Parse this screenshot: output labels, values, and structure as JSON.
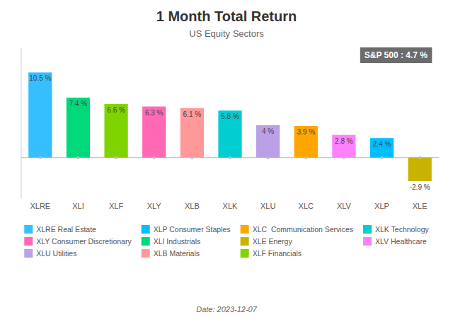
{
  "chart_data": {
    "type": "bar",
    "title": "1 Month Total Return",
    "subtitle": "US Equity Sectors",
    "annotations": [
      "S&P 500 : 4.7 %",
      "Date: 2023-12-07"
    ],
    "categories": [
      "XLRE",
      "XLI",
      "XLF",
      "XLY",
      "XLB",
      "XLK",
      "XLU",
      "XLC",
      "XLV",
      "XLP",
      "XLE"
    ],
    "values": [
      10.5,
      7.4,
      6.6,
      6.3,
      6.1,
      5.8,
      4.0,
      3.9,
      2.8,
      2.4,
      -2.9
    ],
    "value_labels": [
      "10.5 %",
      "7.4 %",
      "6.6 %",
      "6.3 %",
      "6.1 %",
      "5.8 %",
      "4 %",
      "3.9 %",
      "2.8 %",
      "2.4 %",
      "-2.9 %"
    ],
    "colors": [
      "#36BFFF",
      "#00D97A",
      "#7FD400",
      "#FF69B4",
      "#FF9999",
      "#00CED1",
      "#BBA0E8",
      "#FFA500",
      "#FF80FF",
      "#00BFFF",
      "#C8B400"
    ],
    "data_labels": true,
    "ylim": [
      -5,
      13.5
    ],
    "tick_labels": "x",
    "grid": false,
    "legend_items": [
      {
        "name": "XLRE Real Estate",
        "color": "#36BFFF"
      },
      {
        "name": "XLY Consumer Discretionary",
        "color": "#FF69B4"
      },
      {
        "name": "XLU Utilities",
        "color": "#BBA0E8"
      },
      {
        "name": "XLP Consumer Staples",
        "color": "#00BFFF"
      },
      {
        "name": "XLI Industrials",
        "color": "#00D97A"
      },
      {
        "name": "XLB Materials",
        "color": "#FF9999"
      },
      {
        "name": "XLC  Communication Services",
        "color": "#FFA500"
      },
      {
        "name": "XLE Energy",
        "color": "#C8B400"
      },
      {
        "name": "XLF Financials",
        "color": "#7FD400"
      },
      {
        "name": "XLK Technology",
        "color": "#00CED1"
      },
      {
        "name": "XLV Healthcare",
        "color": "#FF80FF"
      }
    ]
  }
}
